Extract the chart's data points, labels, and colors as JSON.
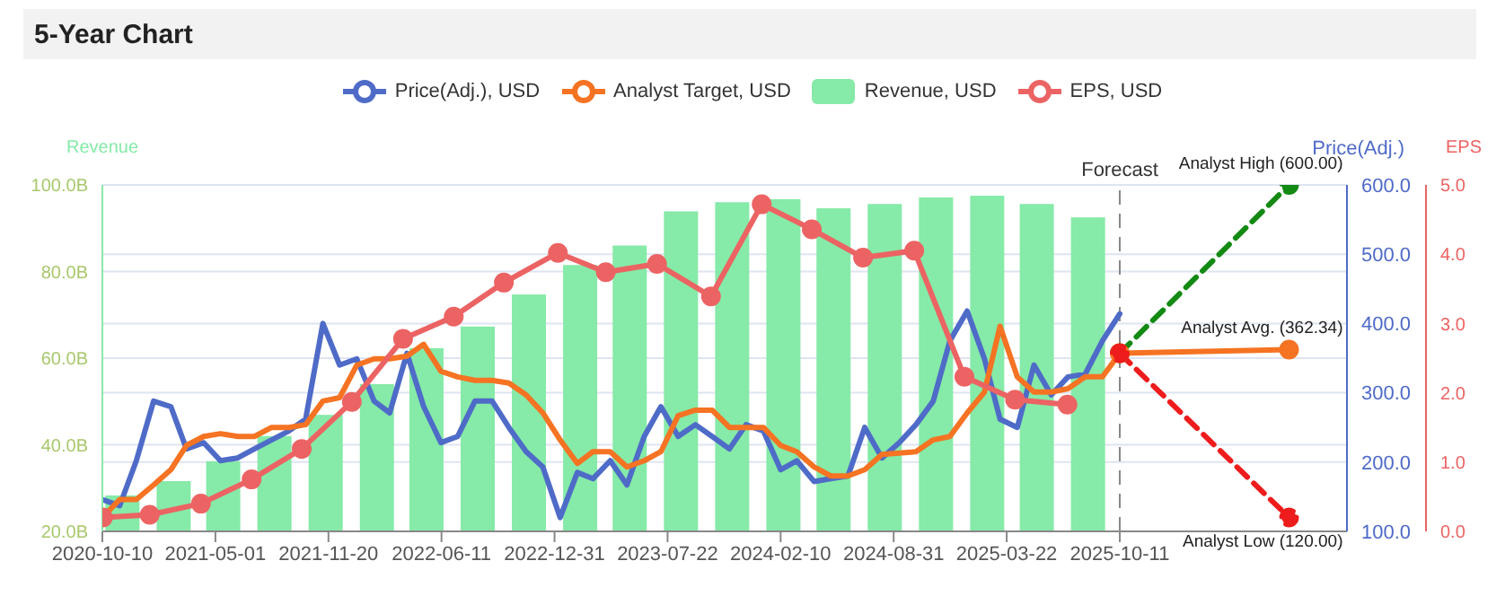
{
  "chart_data": {
    "type": "line",
    "title": "5-Year Chart",
    "ylabel": "Revenue",
    "y2label": "Price(Adj.)",
    "y3label": "EPS",
    "x": [
      "2020-10-10",
      "2020-11-10",
      "2020-12-10",
      "2021-01-10",
      "2021-02-10",
      "2021-03-10",
      "2021-04-10",
      "2021-05-10",
      "2021-06-10",
      "2021-07-10",
      "2021-08-10",
      "2021-09-10",
      "2021-10-10",
      "2021-11-10",
      "2021-12-10",
      "2022-01-10",
      "2022-02-10",
      "2022-03-10",
      "2022-04-10",
      "2022-05-10",
      "2022-06-10",
      "2022-07-10",
      "2022-08-10",
      "2022-09-10",
      "2022-10-10",
      "2022-11-10",
      "2022-12-10",
      "2023-01-10",
      "2023-02-10",
      "2023-03-10",
      "2023-04-10",
      "2023-05-10",
      "2023-06-10",
      "2023-07-10",
      "2023-08-10",
      "2023-09-10",
      "2023-10-10",
      "2023-11-10",
      "2023-12-10",
      "2024-01-10",
      "2024-02-10",
      "2024-03-10",
      "2024-04-10",
      "2024-05-10",
      "2024-06-10",
      "2024-07-10",
      "2024-08-10",
      "2024-09-10",
      "2024-10-10",
      "2024-11-10",
      "2024-12-10",
      "2025-01-10",
      "2025-02-10",
      "2025-03-10",
      "2025-04-10",
      "2025-05-10",
      "2025-06-10",
      "2025-07-10",
      "2025-08-10",
      "2025-09-10",
      "2025-10-11"
    ],
    "series": [
      {
        "name": "Price(Adj.), USD",
        "axis": "y2",
        "color": "#4f6bc8",
        "marker": "none",
        "values": [
          146,
          137,
          202,
          288,
          280,
          219,
          228,
          202,
          206,
          219,
          232,
          245,
          262,
          400,
          340,
          349,
          288,
          271,
          357,
          280,
          228,
          237,
          288,
          288,
          250,
          215,
          193,
          120,
          185,
          176,
          202,
          167,
          237,
          280,
          237,
          254,
          237,
          219,
          254,
          245,
          189,
          202,
          172,
          176,
          180,
          250,
          206,
          228,
          254,
          288,
          375,
          418,
          349,
          262,
          250,
          340,
          297,
          323,
          327,
          375,
          414
        ]
      },
      {
        "name": "Analyst Target, USD",
        "axis": "y2",
        "color": "#f57322",
        "marker": "none",
        "values": [
          120,
          146,
          146,
          167,
          189,
          224,
          237,
          241,
          237,
          237,
          250,
          250,
          254,
          288,
          293,
          340,
          349,
          349,
          353,
          370,
          331,
          323,
          318,
          318,
          314,
          297,
          271,
          232,
          198,
          215,
          215,
          193,
          202,
          215,
          267,
          275,
          275,
          250,
          250,
          250,
          224,
          215,
          193,
          180,
          180,
          189,
          211,
          213,
          215,
          232,
          237,
          271,
          301,
          396,
          323,
          301,
          301,
          306,
          323,
          323,
          357
        ]
      },
      {
        "name": "Revenue, USD",
        "type": "bar",
        "axis": "y",
        "color": "#86eaa8",
        "x": [
          "2020-11-15",
          "2021-02-15",
          "2021-05-15",
          "2021-08-15",
          "2021-11-15",
          "2022-02-15",
          "2022-05-15",
          "2022-08-15",
          "2022-11-15",
          "2023-02-15",
          "2023-05-15",
          "2023-08-15",
          "2023-11-15",
          "2024-02-15",
          "2024-05-15",
          "2024-08-15",
          "2024-11-15",
          "2025-02-15",
          "2025-05-15",
          "2025-08-15"
        ],
        "values": [
          28.3,
          31.6,
          36.2,
          42.0,
          46.9,
          54.0,
          62.3,
          67.3,
          74.7,
          81.5,
          86.0,
          93.9,
          96.0,
          96.7,
          94.6,
          95.6,
          97.1,
          97.5,
          95.6,
          92.5
        ]
      },
      {
        "name": "EPS, USD",
        "axis": "y3",
        "color": "#ec6363",
        "marker": "circle",
        "x": [
          "2020-10-11",
          "2021-01-03",
          "2021-04-05",
          "2021-07-05",
          "2021-10-03",
          "2022-01-01",
          "2022-04-03",
          "2022-07-03",
          "2022-10-01",
          "2023-01-06",
          "2023-04-02",
          "2023-07-03",
          "2023-10-08",
          "2024-01-07",
          "2024-04-06",
          "2024-07-07",
          "2024-10-07",
          "2025-01-05",
          "2025-04-06",
          "2025-07-09"
        ],
        "values": [
          0.2,
          0.24,
          0.4,
          0.75,
          1.19,
          1.87,
          2.78,
          3.1,
          3.59,
          4.02,
          3.74,
          3.86,
          3.39,
          4.72,
          4.36,
          3.95,
          4.05,
          2.23,
          1.9,
          1.83
        ]
      },
      {
        "axis": "y2",
        "color": "#138a13",
        "marker": "circle",
        "line_style": "dashed",
        "x": [
          "2025-10-11",
          "2026-08-11"
        ],
        "values": [
          357,
          600
        ]
      },
      {
        "axis": "y2",
        "color": "#f57322",
        "marker": "circle",
        "x": [
          "2025-10-11",
          "2026-08-11"
        ],
        "values": [
          357,
          362.34
        ]
      },
      {
        "axis": "y2",
        "color": "#ee1c1c",
        "marker": "circle",
        "line_style": "dashed",
        "x": [
          "2025-10-11",
          "2026-08-11"
        ],
        "values": [
          357,
          120
        ]
      }
    ],
    "xlim": [
      "2020-10-10",
      "2026-11-23"
    ],
    "xticks": [
      "2020-10-10",
      "2021-05-01",
      "2021-11-20",
      "2022-06-11",
      "2022-12-31",
      "2023-07-22",
      "2024-02-10",
      "2024-08-31",
      "2025-03-22",
      "2025-10-11"
    ],
    "ylim": [
      20,
      100
    ],
    "yticks": [
      {
        "value": 20,
        "label": "20.0B"
      },
      {
        "value": 40,
        "label": "40.0B"
      },
      {
        "value": 60,
        "label": "60.0B"
      },
      {
        "value": 80,
        "label": "80.0B"
      },
      {
        "value": 100,
        "label": "100.0B"
      }
    ],
    "y2lim": [
      100,
      600
    ],
    "y2ticks": [
      {
        "value": 100,
        "label": "100.0"
      },
      {
        "value": 200,
        "label": "200.0"
      },
      {
        "value": 300,
        "label": "300.0"
      },
      {
        "value": 400,
        "label": "400.0"
      },
      {
        "value": 500,
        "label": "500.0"
      },
      {
        "value": 600,
        "label": "600.0"
      }
    ],
    "y3lim": [
      0,
      5
    ],
    "y3ticks": [
      {
        "value": 0,
        "label": "0.0"
      },
      {
        "value": 1,
        "label": "1.0"
      },
      {
        "value": 2,
        "label": "2.0"
      },
      {
        "value": 3,
        "label": "3.0"
      },
      {
        "value": 4,
        "label": "4.0"
      },
      {
        "value": 5,
        "label": "5.0"
      }
    ],
    "ref_lines": [
      {
        "axis": "x",
        "value": "2025-10-11",
        "label": "Forecast",
        "color": "#888888",
        "line_style": "dashed"
      }
    ],
    "annotations": [
      "Analyst High (600.00)",
      "Analyst Avg. (362.34)",
      "Analyst Low (120.00)"
    ],
    "grid": "y",
    "legend": "top"
  }
}
